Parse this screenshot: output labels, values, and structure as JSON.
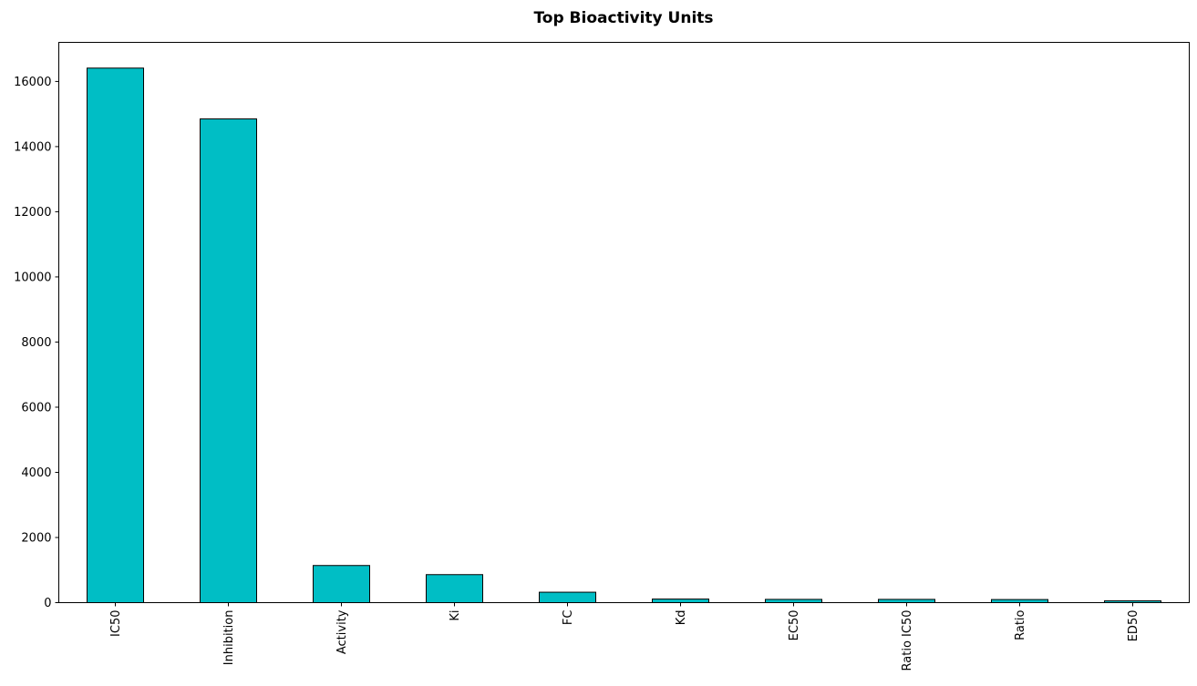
{
  "chart_data": {
    "type": "bar",
    "title": "Top Bioactivity Units",
    "xlabel": "",
    "ylabel": "",
    "categories": [
      "IC50",
      "Inhibition",
      "Activity",
      "Ki",
      "FC",
      "Kd",
      "EC50",
      "Ratio IC50",
      "Ratio",
      "ED50"
    ],
    "values": [
      16410,
      14850,
      1140,
      860,
      320,
      110,
      100,
      100,
      95,
      55
    ],
    "ylim": [
      0,
      17200
    ],
    "yticks": [
      0,
      2000,
      4000,
      6000,
      8000,
      10000,
      12000,
      14000,
      16000
    ],
    "bar_color": "#00bec5",
    "edge_color": "#000000",
    "grid": false,
    "legend": "none"
  }
}
